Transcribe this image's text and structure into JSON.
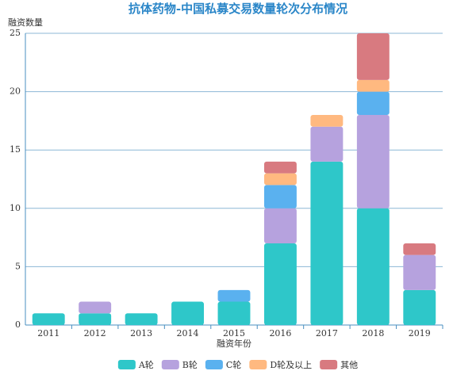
{
  "chart_data": {
    "type": "stacked_bar",
    "title": "抗体药物-中国私募交易数量轮次分布情况",
    "y_label": "融资数量",
    "x_label": "融资年份",
    "categories": [
      "2011",
      "2012",
      "2013",
      "2014",
      "2015",
      "2016",
      "2017",
      "2018",
      "2019"
    ],
    "series": [
      {
        "name": "A轮",
        "color": "#2ec7c9",
        "values": [
          1,
          1,
          1,
          2,
          2,
          7,
          14,
          10,
          3
        ]
      },
      {
        "name": "B轮",
        "color": "#b6a2de",
        "values": [
          0,
          1,
          0,
          0,
          0,
          3,
          3,
          8,
          3
        ]
      },
      {
        "name": "C轮",
        "color": "#5ab1ef",
        "values": [
          0,
          0,
          0,
          0,
          1,
          2,
          0,
          2,
          0
        ]
      },
      {
        "name": "D轮及以上",
        "color": "#ffb980",
        "values": [
          0,
          0,
          0,
          0,
          0,
          1,
          1,
          1,
          0
        ]
      },
      {
        "name": "其他",
        "color": "#d87a80",
        "values": [
          0,
          0,
          0,
          0,
          0,
          1,
          0,
          4,
          1
        ]
      }
    ],
    "ylim": [
      0,
      25
    ],
    "yticks": [
      0,
      5,
      10,
      15,
      20,
      25
    ],
    "grid": true,
    "legend": "bottom"
  }
}
